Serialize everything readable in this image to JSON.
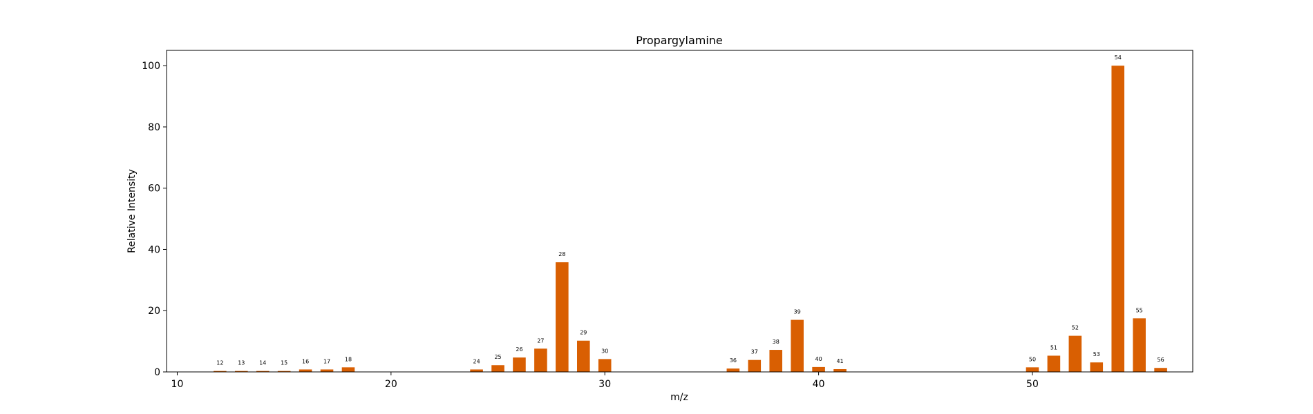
{
  "chart_data": {
    "type": "bar",
    "title": "Propargylamine",
    "xlabel": "m/z",
    "ylabel": "Relative Intensity",
    "xlim": [
      9.5,
      57.5
    ],
    "ylim": [
      0,
      105
    ],
    "xticks": [
      10,
      20,
      30,
      40,
      50
    ],
    "yticks": [
      0,
      20,
      40,
      60,
      80,
      100
    ],
    "grid": false,
    "bar_color": "#d95f02",
    "x": [
      12,
      13,
      14,
      15,
      16,
      17,
      18,
      24,
      25,
      26,
      27,
      28,
      29,
      30,
      36,
      37,
      38,
      39,
      40,
      41,
      50,
      51,
      52,
      53,
      54,
      55,
      56
    ],
    "values": [
      0.3,
      0.3,
      0.3,
      0.3,
      0.8,
      0.8,
      1.5,
      0.8,
      2.2,
      4.7,
      7.6,
      35.8,
      10.2,
      4.2,
      1.1,
      3.9,
      7.2,
      17.0,
      1.6,
      0.9,
      1.5,
      5.3,
      11.8,
      3.1,
      100.0,
      17.5,
      1.3
    ],
    "labels": [
      "12",
      "13",
      "14",
      "15",
      "16",
      "17",
      "18",
      "24",
      "25",
      "26",
      "27",
      "28",
      "29",
      "30",
      "36",
      "37",
      "38",
      "39",
      "40",
      "41",
      "50",
      "51",
      "52",
      "53",
      "54",
      "55",
      "56"
    ]
  }
}
